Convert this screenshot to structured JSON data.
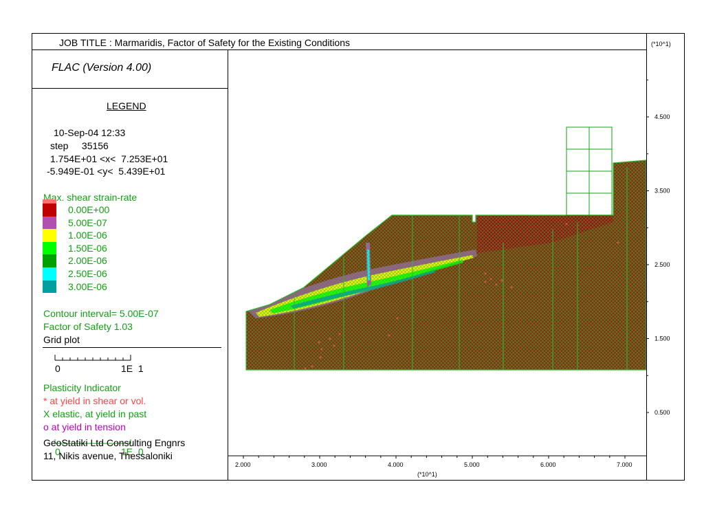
{
  "header": {
    "job_title": "JOB TITLE : Marmaridis, Factor of Safety for the Existing Conditions",
    "y_scale_note": "(*10^1)"
  },
  "panel": {
    "program": "FLAC (Version 4.00)",
    "legend_title": "LEGEND",
    "date": "10-Sep-04  12:33",
    "step": "step     35156",
    "x_range": "1.754E+01 <x<  7.253E+01",
    "y_range": "-5.949E-01 <y<  5.439E+01",
    "contour_title": "Max. shear strain-rate",
    "contours": [
      {
        "label": "0.00E+00",
        "color": "#c00000"
      },
      {
        "label": "5.00E-07",
        "color": "#b050b0"
      },
      {
        "label": "1.00E-06",
        "color": "#ffff00"
      },
      {
        "label": "1.50E-06",
        "color": "#00ff00"
      },
      {
        "label": "2.00E-06",
        "color": "#00a000"
      },
      {
        "label": "2.50E-06",
        "color": "#00ffff"
      },
      {
        "label": "3.00E-06",
        "color": "#00a0a0"
      }
    ],
    "contour_interval": "Contour interval=  5.00E-07",
    "factor_of_safety": "Factor of Safety  1.03",
    "grid_plot": "Grid plot",
    "grid_scale_left": "0",
    "grid_scale_right": "1E  1",
    "plasticity_title": "Plasticity Indicator",
    "plasticity_items": [
      {
        "label": "* at yield in shear or vol.",
        "color": "#ff4444"
      },
      {
        "label": "X elastic, at yield in past",
        "color": "#12a012"
      },
      {
        "label": "o at yield in tension",
        "color": "#c000c0"
      }
    ],
    "plasticity_scale_left": "0",
    "plasticity_scale_right": "1E  0",
    "company": "GeoStatiki Ltd Consulting Engnrs",
    "address": "11, Nikis avenue, Thessaloniki"
  },
  "chart_data": {
    "type": "heatmap",
    "x_ticks": [
      "2.000",
      "3.000",
      "4.000",
      "5.000",
      "6.000",
      "7.000"
    ],
    "y_ticks": [
      "0.500",
      "1.500",
      "2.500",
      "3.500",
      "4.500"
    ],
    "x_scale_note": "(*10^1)",
    "y_scale_note": "(*10^1)",
    "colors": {
      "ground": "#8b2a12",
      "grid": "#2eb82e",
      "shear": "#ff5a5a",
      "upper_block": "#a00a10"
    }
  }
}
